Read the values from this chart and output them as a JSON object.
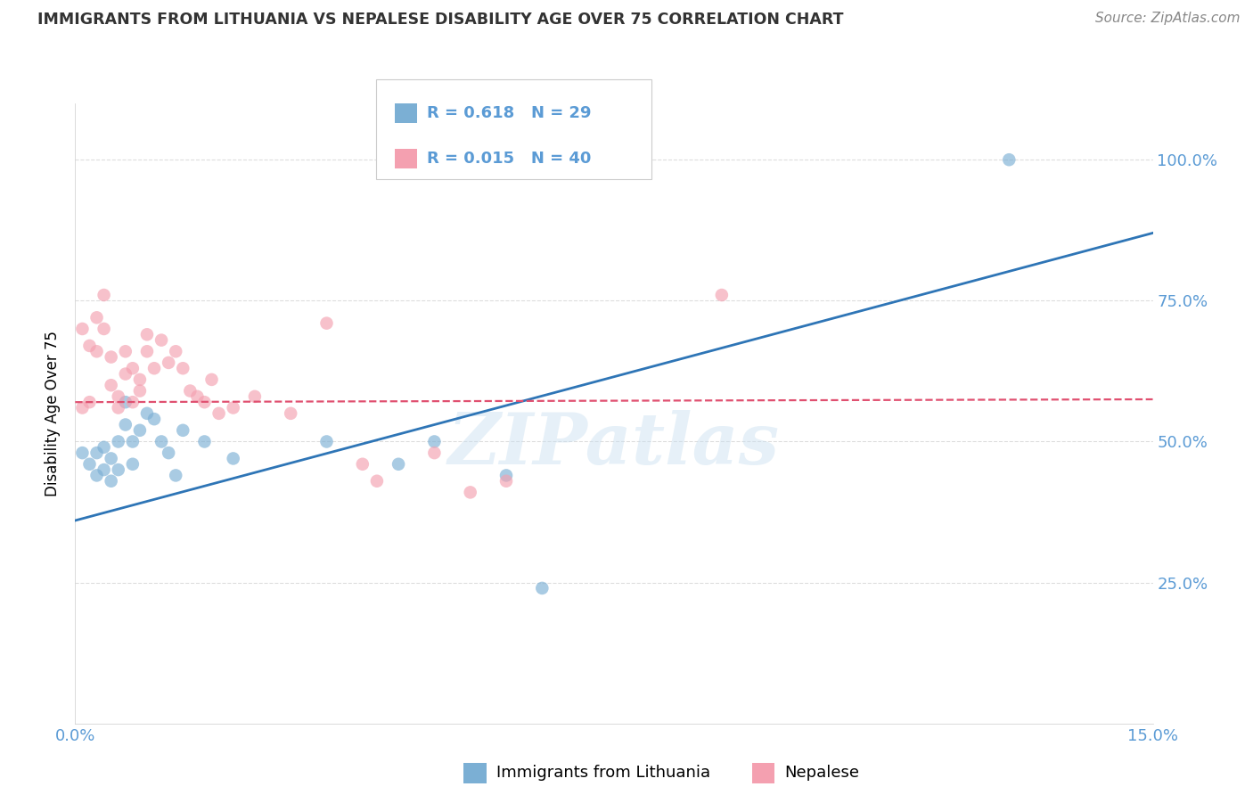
{
  "title": "IMMIGRANTS FROM LITHUANIA VS NEPALESE DISABILITY AGE OVER 75 CORRELATION CHART",
  "source": "Source: ZipAtlas.com",
  "ylabel": "Disability Age Over 75",
  "xlim": [
    0.0,
    0.15
  ],
  "ylim": [
    0.0,
    1.1
  ],
  "x_ticks": [
    0.0,
    0.03,
    0.06,
    0.09,
    0.12,
    0.15
  ],
  "x_tick_labels": [
    "0.0%",
    "",
    "",
    "",
    "",
    "15.0%"
  ],
  "y_ticks": [
    0.0,
    0.25,
    0.5,
    0.75,
    1.0
  ],
  "y_tick_labels_right": [
    "",
    "25.0%",
    "50.0%",
    "75.0%",
    "100.0%"
  ],
  "legend_label_blue": "Immigrants from Lithuania",
  "legend_label_pink": "Nepalese",
  "watermark": "ZIPatlas",
  "title_color": "#333333",
  "source_color": "#888888",
  "axis_color": "#5b9bd5",
  "grid_color": "#dddddd",
  "blue_dot_color": "#7bafd4",
  "pink_dot_color": "#f4a0b0",
  "blue_line_color": "#2e75b6",
  "pink_line_color": "#e05070",
  "blue_trendline_x": [
    0.0,
    0.15
  ],
  "blue_trendline_y": [
    0.36,
    0.87
  ],
  "pink_trendline_x": [
    0.0,
    0.15
  ],
  "pink_trendline_y": [
    0.57,
    0.575
  ],
  "blue_x": [
    0.001,
    0.002,
    0.003,
    0.003,
    0.004,
    0.004,
    0.005,
    0.005,
    0.006,
    0.006,
    0.007,
    0.007,
    0.008,
    0.008,
    0.009,
    0.01,
    0.011,
    0.012,
    0.013,
    0.014,
    0.015,
    0.018,
    0.022,
    0.035,
    0.045,
    0.05,
    0.06,
    0.13,
    0.065
  ],
  "blue_y": [
    0.48,
    0.46,
    0.44,
    0.48,
    0.45,
    0.49,
    0.47,
    0.43,
    0.5,
    0.45,
    0.53,
    0.57,
    0.5,
    0.46,
    0.52,
    0.55,
    0.54,
    0.5,
    0.48,
    0.44,
    0.52,
    0.5,
    0.47,
    0.5,
    0.46,
    0.5,
    0.44,
    1.0,
    0.24
  ],
  "pink_x": [
    0.001,
    0.001,
    0.002,
    0.002,
    0.003,
    0.003,
    0.004,
    0.004,
    0.005,
    0.005,
    0.006,
    0.006,
    0.007,
    0.007,
    0.008,
    0.008,
    0.009,
    0.009,
    0.01,
    0.01,
    0.011,
    0.012,
    0.013,
    0.014,
    0.015,
    0.016,
    0.017,
    0.018,
    0.019,
    0.02,
    0.022,
    0.025,
    0.03,
    0.035,
    0.04,
    0.042,
    0.05,
    0.055,
    0.06,
    0.09
  ],
  "pink_y": [
    0.56,
    0.7,
    0.57,
    0.67,
    0.66,
    0.72,
    0.7,
    0.76,
    0.6,
    0.65,
    0.56,
    0.58,
    0.66,
    0.62,
    0.63,
    0.57,
    0.61,
    0.59,
    0.69,
    0.66,
    0.63,
    0.68,
    0.64,
    0.66,
    0.63,
    0.59,
    0.58,
    0.57,
    0.61,
    0.55,
    0.56,
    0.58,
    0.55,
    0.71,
    0.46,
    0.43,
    0.48,
    0.41,
    0.43,
    0.76
  ]
}
